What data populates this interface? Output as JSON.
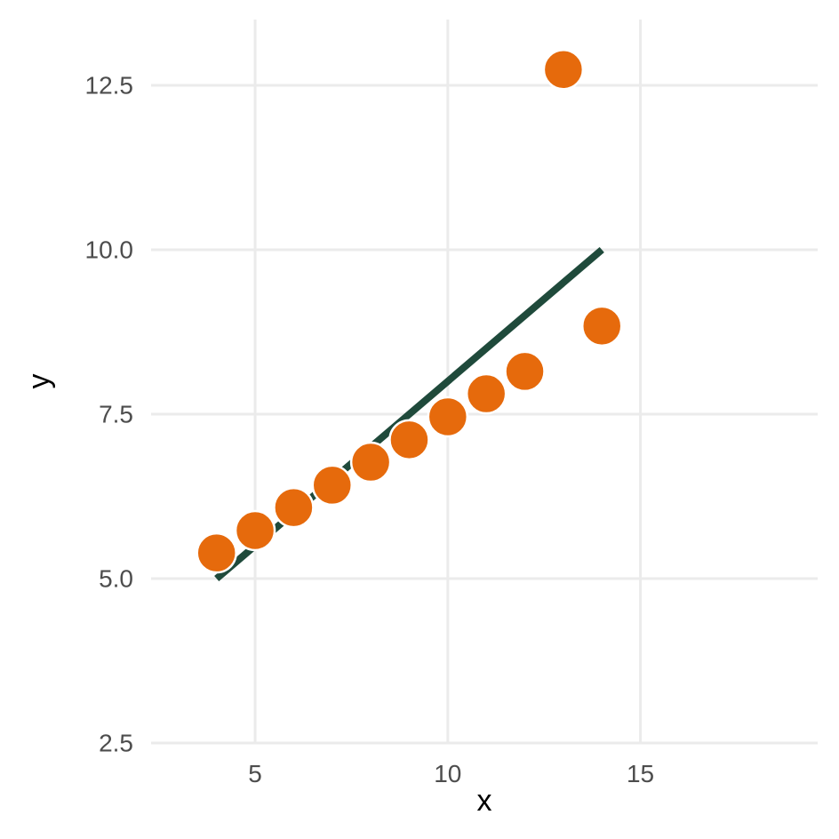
{
  "chart_data": {
    "type": "scatter",
    "title": "",
    "xlabel": "x",
    "ylabel": "y",
    "xlim": [
      2.3,
      19.6
    ],
    "ylim": [
      2.5,
      13.5
    ],
    "x_ticks": [
      5,
      10,
      15
    ],
    "x_tick_labels": [
      "5",
      "10",
      "15"
    ],
    "y_ticks": [
      2.5,
      5.0,
      7.5,
      10.0,
      12.5
    ],
    "y_tick_labels": [
      "2.5",
      "5.0",
      "7.5",
      "10.0",
      "12.5"
    ],
    "grid": true,
    "legend": "none",
    "series": [
      {
        "kind": "points",
        "color": "#e66a0c",
        "x": [
          4,
          5,
          6,
          7,
          8,
          9,
          10,
          11,
          12,
          13,
          14
        ],
        "y": [
          5.39,
          5.73,
          6.08,
          6.42,
          6.77,
          7.11,
          7.46,
          7.81,
          8.15,
          12.74,
          8.84
        ]
      },
      {
        "kind": "line",
        "color": "#1f4a3b",
        "x": [
          4,
          14
        ],
        "y": [
          5.0,
          10.0
        ]
      }
    ]
  }
}
